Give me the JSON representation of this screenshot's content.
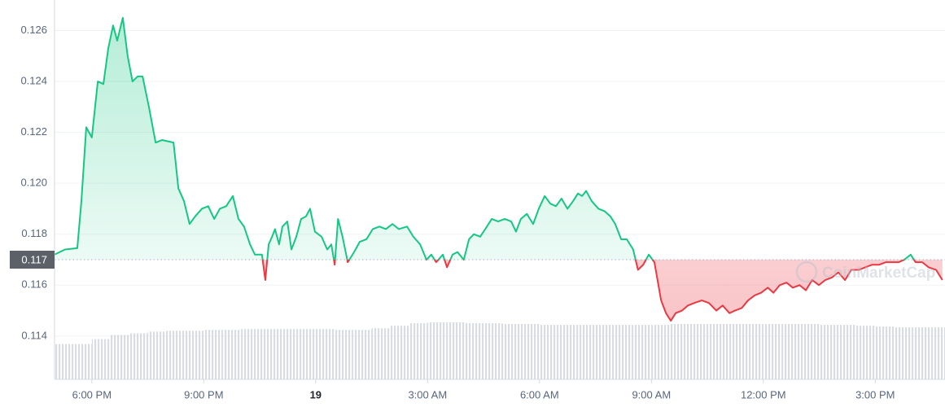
{
  "chart_data": {
    "type": "line",
    "reference": 0.117,
    "watermark": "CoinMarketCap",
    "up_color": "#16c784",
    "down_color": "#ea3943",
    "grid": true,
    "xlim": [
      17.0,
      40.87
    ],
    "ylim": [
      0.1123,
      0.1272
    ],
    "yticks": [
      0.114,
      0.116,
      0.118,
      {
        "value": 0.12,
        "label": "0.120"
      },
      0.122,
      0.124,
      0.126
    ],
    "xticks": [
      {
        "value": 18,
        "label": "6:00 PM"
      },
      {
        "value": 21,
        "label": "9:00 PM"
      },
      {
        "value": 24,
        "label": "19"
      },
      {
        "value": 27,
        "label": "3:00 AM"
      },
      {
        "value": 30,
        "label": "6:00 AM"
      },
      {
        "value": 33,
        "label": "9:00 AM"
      },
      {
        "value": 36,
        "label": "12:00 PM"
      },
      {
        "value": 39,
        "label": "3:00 PM"
      }
    ],
    "series": [
      {
        "x": [
          17.0,
          17.28,
          17.61,
          17.72,
          17.85,
          18.0,
          18.16,
          18.31,
          18.44,
          18.57,
          18.68,
          18.83,
          18.96,
          19.09,
          19.23,
          19.36,
          19.53,
          19.71,
          19.88,
          20.19,
          20.32,
          20.47,
          20.62,
          20.77,
          20.95,
          21.12,
          21.28,
          21.43,
          21.6,
          21.78,
          21.93,
          22.08,
          22.24,
          22.37,
          22.56,
          22.65,
          22.74,
          22.83,
          22.91,
          23.02,
          23.11,
          23.24,
          23.35,
          23.48,
          23.61,
          23.74,
          23.85,
          23.98,
          24.16,
          24.31,
          24.42,
          24.51,
          24.6,
          24.72,
          24.86,
          25.03,
          25.18,
          25.36,
          25.53,
          25.71,
          25.88,
          26.06,
          26.23,
          26.45,
          26.62,
          26.8,
          26.97,
          27.1,
          27.23,
          27.41,
          27.52,
          27.67,
          27.8,
          27.97,
          28.11,
          28.24,
          28.41,
          28.59,
          28.72,
          28.89,
          29.07,
          29.24,
          29.37,
          29.5,
          29.66,
          29.83,
          29.98,
          30.14,
          30.29,
          30.44,
          30.59,
          30.75,
          30.9,
          31.03,
          31.14,
          31.25,
          31.4,
          31.58,
          31.75,
          31.9,
          32.03,
          32.19,
          32.34,
          32.51,
          32.64,
          32.78,
          32.93,
          33.08,
          33.26,
          33.39,
          33.52,
          33.65,
          33.82,
          33.98,
          34.15,
          34.35,
          34.54,
          34.74,
          34.91,
          35.09,
          35.24,
          35.42,
          35.59,
          35.77,
          35.94,
          36.12,
          36.27,
          36.44,
          36.62,
          36.79,
          36.97,
          37.14,
          37.31,
          37.49,
          37.66,
          37.84,
          38.01,
          38.19,
          38.36,
          38.56,
          38.73,
          38.91,
          39.1,
          39.28,
          39.47,
          39.63,
          39.78,
          39.95,
          40.08,
          40.26,
          40.43,
          40.63,
          40.8
        ],
        "values": [
          0.1172,
          0.1174,
          0.11745,
          0.1193,
          0.1222,
          0.1218,
          0.124,
          0.1239,
          0.1253,
          0.1262,
          0.1256,
          0.1265,
          0.125,
          0.124,
          0.1242,
          0.1242,
          0.123,
          0.1216,
          0.1217,
          0.1216,
          0.1198,
          0.1193,
          0.1184,
          0.1187,
          0.119,
          0.1191,
          0.1186,
          0.119,
          0.1191,
          0.1195,
          0.1186,
          0.1183,
          0.1176,
          0.1172,
          0.1172,
          0.1162,
          0.1176,
          0.1179,
          0.1182,
          0.1176,
          0.1183,
          0.1185,
          0.1174,
          0.1179,
          0.1186,
          0.1187,
          0.119,
          0.1181,
          0.1179,
          0.1174,
          0.1176,
          0.1168,
          0.1186,
          0.1179,
          0.1169,
          0.1173,
          0.1177,
          0.1178,
          0.1182,
          0.1183,
          0.1182,
          0.1184,
          0.1182,
          0.1183,
          0.1179,
          0.1176,
          0.117,
          0.1172,
          0.1169,
          0.1172,
          0.1167,
          0.1172,
          0.1173,
          0.117,
          0.1178,
          0.118,
          0.1179,
          0.1183,
          0.1186,
          0.1185,
          0.1186,
          0.1185,
          0.1181,
          0.1186,
          0.1188,
          0.1184,
          0.119,
          0.1195,
          0.1192,
          0.1191,
          0.1194,
          0.119,
          0.1193,
          0.1196,
          0.1195,
          0.1197,
          0.1193,
          0.119,
          0.1189,
          0.1187,
          0.1184,
          0.1178,
          0.1178,
          0.1174,
          0.1166,
          0.1168,
          0.1172,
          0.1169,
          0.1154,
          0.1149,
          0.1146,
          0.1149,
          0.115,
          0.1152,
          0.1153,
          0.1154,
          0.1153,
          0.115,
          0.1152,
          0.1149,
          0.115,
          0.1151,
          0.1154,
          0.1156,
          0.1157,
          0.1159,
          0.1157,
          0.116,
          0.1161,
          0.1159,
          0.116,
          0.1158,
          0.1162,
          0.116,
          0.1162,
          0.1163,
          0.1165,
          0.1162,
          0.1166,
          0.1166,
          0.1167,
          0.1168,
          0.1168,
          0.1169,
          0.1169,
          0.1169,
          0.117,
          0.1172,
          0.1169,
          0.1169,
          0.1167,
          0.1166,
          0.1162
        ]
      }
    ],
    "volume": {
      "color": "#dfe2e7",
      "x": [
        17.0,
        17.5,
        18.0,
        18.5,
        19.0,
        19.5,
        20.0,
        20.5,
        21.0,
        21.5,
        22.0,
        22.5,
        23.0,
        23.5,
        24.0,
        24.5,
        25.0,
        25.5,
        26.0,
        26.5,
        27.0,
        27.5,
        28.0,
        28.5,
        29.0,
        29.5,
        30.0,
        30.5,
        31.0,
        31.5,
        32.0,
        32.5,
        33.0,
        33.5,
        34.0,
        34.5,
        35.0,
        35.5,
        36.0,
        36.5,
        37.0,
        37.5,
        38.0,
        38.5,
        39.0,
        39.5,
        40.0,
        40.5
      ],
      "values": [
        42,
        42,
        48,
        53,
        55,
        57,
        58,
        58,
        59,
        59,
        60,
        60,
        60,
        60,
        60,
        59,
        59,
        61,
        64,
        67,
        68,
        68,
        67,
        67,
        66,
        66,
        65,
        65,
        65,
        65,
        65,
        65,
        65,
        66,
        66,
        66,
        66,
        66,
        66,
        66,
        66,
        65,
        65,
        64,
        63,
        62,
        62,
        62
      ]
    }
  }
}
